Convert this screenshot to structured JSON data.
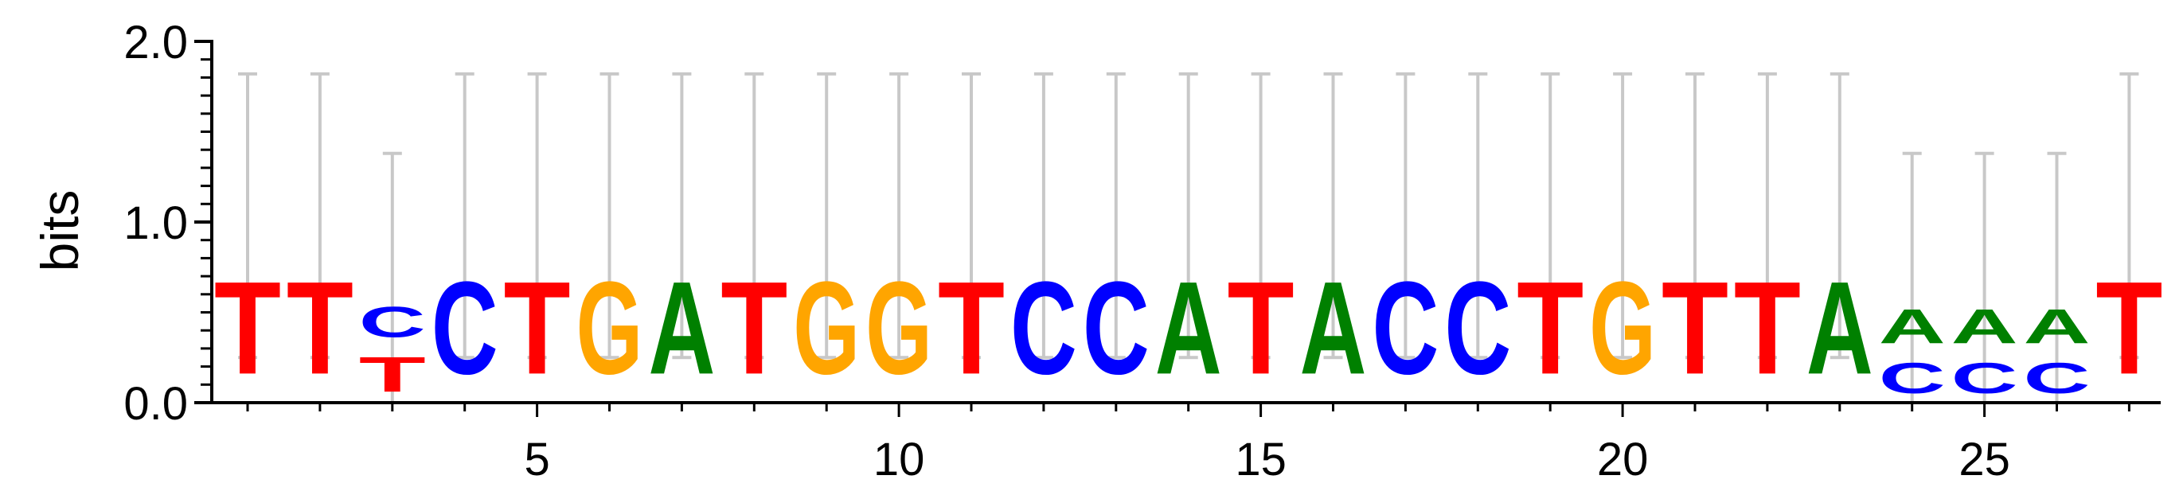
{
  "chart_data": {
    "type": "sequence-logo",
    "ylabel": "bits",
    "ylim": [
      0,
      2
    ],
    "y_ticks": [
      "0.0",
      "1.0",
      "2.0"
    ],
    "x_ticks": [
      5,
      10,
      15,
      20,
      25
    ],
    "positions": [
      1,
      2,
      3,
      4,
      5,
      6,
      7,
      8,
      9,
      10,
      11,
      12,
      13,
      14,
      15,
      16,
      17,
      18,
      19,
      20,
      21,
      22,
      23,
      24,
      25,
      26,
      27
    ],
    "letter_colors": {
      "A": "#008000",
      "C": "#0000ff",
      "G": "#ffa500",
      "T": "#ff0000"
    },
    "columns": [
      {
        "pos": 1,
        "stack": [
          {
            "letter": "T",
            "bits": 0.82
          }
        ],
        "error": [
          0.25,
          1.82
        ]
      },
      {
        "pos": 2,
        "stack": [
          {
            "letter": "T",
            "bits": 0.82
          }
        ],
        "error": [
          0.25,
          1.82
        ]
      },
      {
        "pos": 3,
        "stack": [
          {
            "letter": "T",
            "bits": 0.31
          },
          {
            "letter": "C",
            "bits": 0.27
          }
        ],
        "error": [
          0.0,
          1.38
        ]
      },
      {
        "pos": 4,
        "stack": [
          {
            "letter": "C",
            "bits": 0.82
          }
        ],
        "error": [
          0.25,
          1.82
        ]
      },
      {
        "pos": 5,
        "stack": [
          {
            "letter": "T",
            "bits": 0.82
          }
        ],
        "error": [
          0.25,
          1.82
        ]
      },
      {
        "pos": 6,
        "stack": [
          {
            "letter": "G",
            "bits": 0.82
          }
        ],
        "error": [
          0.25,
          1.82
        ]
      },
      {
        "pos": 7,
        "stack": [
          {
            "letter": "A",
            "bits": 0.82
          }
        ],
        "error": [
          0.25,
          1.82
        ]
      },
      {
        "pos": 8,
        "stack": [
          {
            "letter": "T",
            "bits": 0.82
          }
        ],
        "error": [
          0.25,
          1.82
        ]
      },
      {
        "pos": 9,
        "stack": [
          {
            "letter": "G",
            "bits": 0.82
          }
        ],
        "error": [
          0.25,
          1.82
        ]
      },
      {
        "pos": 10,
        "stack": [
          {
            "letter": "G",
            "bits": 0.82
          }
        ],
        "error": [
          0.25,
          1.82
        ]
      },
      {
        "pos": 11,
        "stack": [
          {
            "letter": "T",
            "bits": 0.82
          }
        ],
        "error": [
          0.25,
          1.82
        ]
      },
      {
        "pos": 12,
        "stack": [
          {
            "letter": "C",
            "bits": 0.82
          }
        ],
        "error": [
          0.25,
          1.82
        ]
      },
      {
        "pos": 13,
        "stack": [
          {
            "letter": "C",
            "bits": 0.82
          }
        ],
        "error": [
          0.25,
          1.82
        ]
      },
      {
        "pos": 14,
        "stack": [
          {
            "letter": "A",
            "bits": 0.82
          }
        ],
        "error": [
          0.25,
          1.82
        ]
      },
      {
        "pos": 15,
        "stack": [
          {
            "letter": "T",
            "bits": 0.82
          }
        ],
        "error": [
          0.25,
          1.82
        ]
      },
      {
        "pos": 16,
        "stack": [
          {
            "letter": "A",
            "bits": 0.82
          }
        ],
        "error": [
          0.25,
          1.82
        ]
      },
      {
        "pos": 17,
        "stack": [
          {
            "letter": "C",
            "bits": 0.82
          }
        ],
        "error": [
          0.25,
          1.82
        ]
      },
      {
        "pos": 18,
        "stack": [
          {
            "letter": "C",
            "bits": 0.82
          }
        ],
        "error": [
          0.25,
          1.82
        ]
      },
      {
        "pos": 19,
        "stack": [
          {
            "letter": "T",
            "bits": 0.82
          }
        ],
        "error": [
          0.25,
          1.82
        ]
      },
      {
        "pos": 20,
        "stack": [
          {
            "letter": "G",
            "bits": 0.82
          }
        ],
        "error": [
          0.25,
          1.82
        ]
      },
      {
        "pos": 21,
        "stack": [
          {
            "letter": "T",
            "bits": 0.82
          }
        ],
        "error": [
          0.25,
          1.82
        ]
      },
      {
        "pos": 22,
        "stack": [
          {
            "letter": "T",
            "bits": 0.82
          }
        ],
        "error": [
          0.25,
          1.82
        ]
      },
      {
        "pos": 23,
        "stack": [
          {
            "letter": "A",
            "bits": 0.82
          }
        ],
        "error": [
          0.25,
          1.82
        ]
      },
      {
        "pos": 24,
        "stack": [
          {
            "letter": "C",
            "bits": 0.27
          },
          {
            "letter": "A",
            "bits": 0.3
          }
        ],
        "error": [
          0.0,
          1.38
        ]
      },
      {
        "pos": 25,
        "stack": [
          {
            "letter": "C",
            "bits": 0.27
          },
          {
            "letter": "A",
            "bits": 0.3
          }
        ],
        "error": [
          0.0,
          1.38
        ]
      },
      {
        "pos": 26,
        "stack": [
          {
            "letter": "C",
            "bits": 0.27
          },
          {
            "letter": "A",
            "bits": 0.3
          }
        ],
        "error": [
          0.0,
          1.38
        ]
      },
      {
        "pos": 27,
        "stack": [
          {
            "letter": "T",
            "bits": 0.82
          }
        ],
        "error": [
          0.25,
          1.82
        ]
      }
    ]
  }
}
